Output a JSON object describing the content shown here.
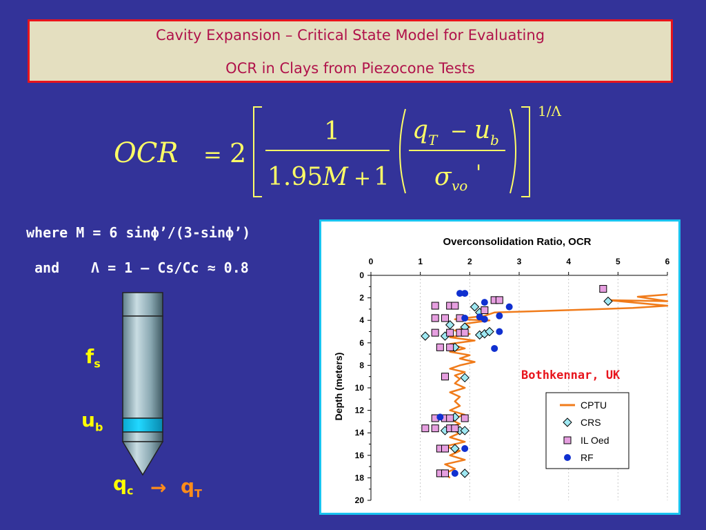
{
  "title": {
    "line1": "Cavity Expansion – Critical State Model for Evaluating",
    "line2": "OCR in Clays from Piezocone Tests"
  },
  "equation": {
    "lhs": "OCR",
    "eq": "=",
    "coef": "2",
    "num": "1",
    "den_a": "1.95",
    "den_m": "M",
    "den_plus": "+",
    "den_b": "1",
    "q": "q",
    "q_sub": "T",
    "minus": "−",
    "u": "u",
    "u_sub": "b",
    "sigma": "σ",
    "sigma_sub": "vo",
    "prime": "'",
    "exponent": "1/Λ"
  },
  "where_text": {
    "line1": "where M = 6 sinϕ’/(3-sinϕ’)",
    "and": "and",
    "lambda_line": "Λ = 1 – Cs/Cc ≈ 0.8"
  },
  "probe_labels": {
    "fs": "f",
    "fs_sub": "s",
    "ub": "u",
    "ub_sub": "b",
    "qc": "q",
    "qc_sub": "c",
    "arrow": "→",
    "qt": "q",
    "qt_sub": "T"
  },
  "colors": {
    "background": "#333399",
    "title_box": "#e4dfc0",
    "title_border": "#e8141c",
    "title_text": "#b0124a",
    "cptu": "#f07b1a",
    "crs": "#9fe8f2",
    "iloed": "#e69fe0",
    "rf": "#1030d0",
    "site_label": "#e8141c",
    "panel_border": "#19c3f0"
  },
  "chart_data": {
    "type": "scatter",
    "title": "Overconsolidation Ratio, OCR",
    "xlabel": "",
    "ylabel": "Depth (meters)",
    "xlim": [
      0,
      6
    ],
    "ylim": [
      0,
      20
    ],
    "x_ticks": [
      "0",
      "1",
      "2",
      "3",
      "4",
      "5",
      "6"
    ],
    "y_ticks": [
      "0",
      "2",
      "4",
      "6",
      "8",
      "10",
      "12",
      "14",
      "16",
      "18",
      "20"
    ],
    "annotation": "Bothkennar, UK",
    "legend": [
      "CPTU",
      "CRS",
      "IL Oed",
      "RF"
    ],
    "series": [
      {
        "name": "CPTU",
        "marker": "line",
        "points": [
          [
            6.0,
            1.7
          ],
          [
            5.4,
            1.9
          ],
          [
            6.0,
            2.3
          ],
          [
            4.8,
            2.2
          ],
          [
            6.0,
            2.7
          ],
          [
            5.3,
            2.9
          ],
          [
            3.2,
            3.2
          ],
          [
            2.5,
            3.3
          ],
          [
            2.3,
            3.6
          ],
          [
            1.7,
            3.9
          ],
          [
            2.4,
            4.0
          ],
          [
            1.9,
            4.3
          ],
          [
            2.0,
            4.6
          ],
          [
            1.7,
            4.9
          ],
          [
            2.0,
            5.2
          ],
          [
            1.6,
            5.5
          ],
          [
            2.1,
            5.8
          ],
          [
            1.6,
            6.1
          ],
          [
            1.9,
            6.5
          ],
          [
            1.6,
            6.8
          ],
          [
            2.0,
            7.1
          ],
          [
            1.8,
            7.4
          ],
          [
            2.1,
            7.7
          ],
          [
            1.8,
            8.0
          ],
          [
            1.6,
            8.3
          ],
          [
            1.9,
            8.6
          ],
          [
            1.7,
            8.9
          ],
          [
            1.8,
            9.2
          ],
          [
            1.7,
            9.6
          ],
          [
            1.9,
            10.0
          ],
          [
            1.6,
            10.4
          ],
          [
            1.8,
            10.8
          ],
          [
            1.7,
            11.2
          ],
          [
            1.8,
            11.6
          ],
          [
            1.6,
            12.0
          ],
          [
            1.9,
            12.4
          ],
          [
            1.6,
            12.8
          ],
          [
            1.8,
            13.2
          ],
          [
            1.5,
            13.6
          ],
          [
            1.8,
            14.0
          ],
          [
            1.6,
            14.4
          ],
          [
            1.9,
            14.8
          ],
          [
            1.5,
            15.2
          ],
          [
            1.8,
            15.6
          ],
          [
            1.6,
            16.0
          ],
          [
            1.9,
            16.4
          ],
          [
            1.5,
            16.8
          ],
          [
            1.7,
            17.2
          ],
          [
            1.5,
            17.6
          ],
          [
            1.6,
            18.0
          ]
        ]
      },
      {
        "name": "CRS",
        "marker": "diamond",
        "points": [
          [
            4.8,
            2.3
          ],
          [
            2.1,
            2.8
          ],
          [
            2.2,
            3.3
          ],
          [
            1.6,
            4.4
          ],
          [
            1.9,
            4.6
          ],
          [
            1.1,
            5.4
          ],
          [
            1.5,
            5.4
          ],
          [
            2.2,
            5.3
          ],
          [
            2.3,
            5.2
          ],
          [
            2.4,
            5.0
          ],
          [
            1.7,
            6.4
          ],
          [
            1.9,
            9.1
          ],
          [
            1.7,
            12.6
          ],
          [
            1.5,
            13.8
          ],
          [
            1.8,
            13.8
          ],
          [
            1.9,
            13.8
          ],
          [
            1.7,
            15.4
          ],
          [
            1.9,
            17.6
          ]
        ]
      },
      {
        "name": "IL Oed",
        "marker": "square",
        "points": [
          [
            4.7,
            1.2
          ],
          [
            2.5,
            2.2
          ],
          [
            2.6,
            2.2
          ],
          [
            1.3,
            2.7
          ],
          [
            1.6,
            2.7
          ],
          [
            1.7,
            2.7
          ],
          [
            2.3,
            3.1
          ],
          [
            1.3,
            3.8
          ],
          [
            1.5,
            3.8
          ],
          [
            1.8,
            3.8
          ],
          [
            1.3,
            5.1
          ],
          [
            1.6,
            5.1
          ],
          [
            1.8,
            5.1
          ],
          [
            1.9,
            5.1
          ],
          [
            1.4,
            6.4
          ],
          [
            1.6,
            6.4
          ],
          [
            1.5,
            9.0
          ],
          [
            1.3,
            12.7
          ],
          [
            1.5,
            12.7
          ],
          [
            1.6,
            12.7
          ],
          [
            1.9,
            12.7
          ],
          [
            1.1,
            13.6
          ],
          [
            1.3,
            13.6
          ],
          [
            1.6,
            13.6
          ],
          [
            1.7,
            13.6
          ],
          [
            1.4,
            15.4
          ],
          [
            1.5,
            15.4
          ],
          [
            1.4,
            17.6
          ],
          [
            1.5,
            17.6
          ]
        ]
      },
      {
        "name": "RF",
        "marker": "circle",
        "points": [
          [
            1.8,
            1.6
          ],
          [
            1.9,
            1.6
          ],
          [
            2.3,
            2.4
          ],
          [
            2.8,
            2.8
          ],
          [
            2.2,
            3.7
          ],
          [
            2.3,
            3.9
          ],
          [
            2.6,
            3.6
          ],
          [
            1.9,
            3.8
          ],
          [
            2.6,
            5.0
          ],
          [
            2.5,
            6.5
          ],
          [
            1.4,
            12.6
          ],
          [
            1.9,
            15.4
          ],
          [
            1.7,
            17.6
          ]
        ]
      }
    ]
  }
}
